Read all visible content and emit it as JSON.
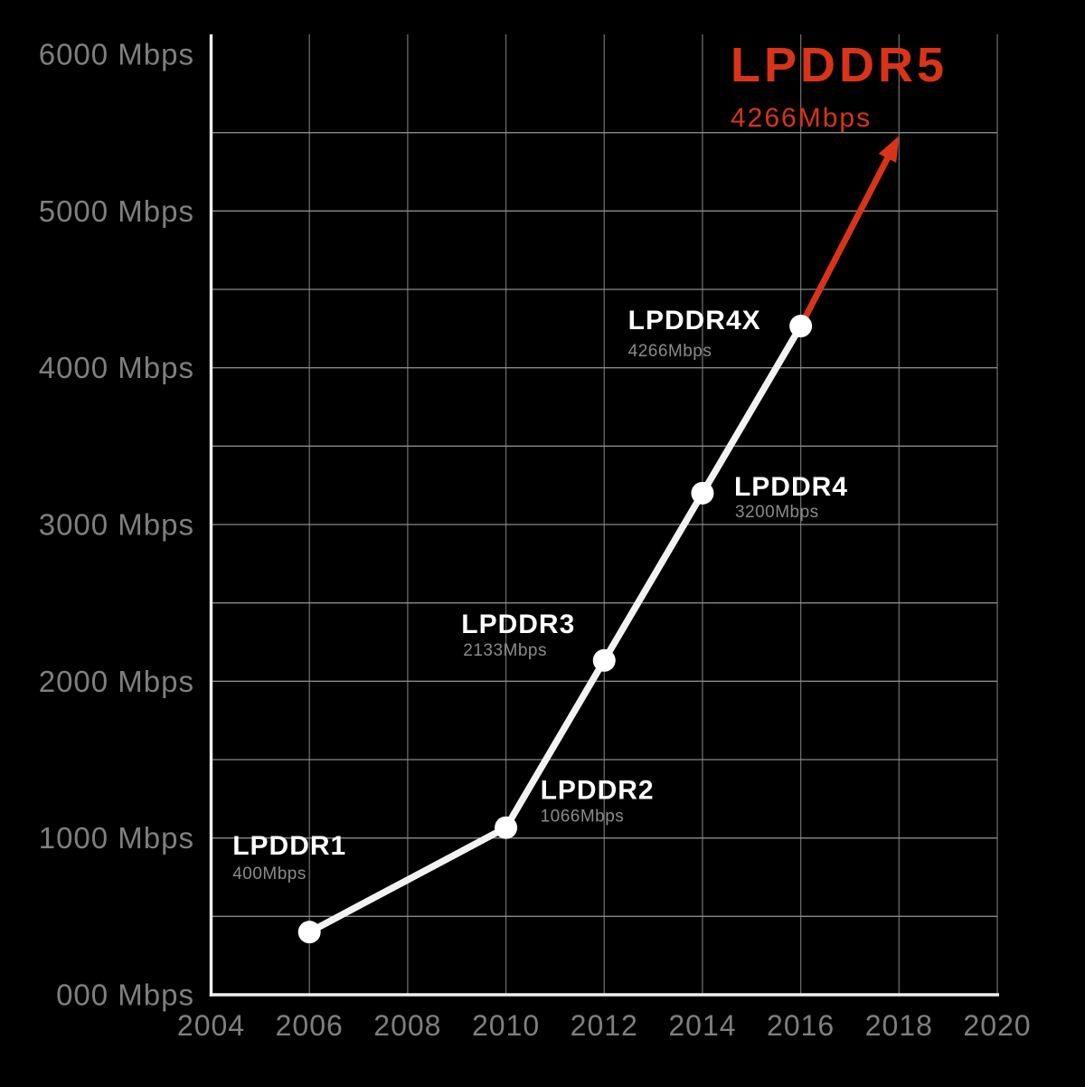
{
  "colors": {
    "background": "#000000",
    "axis": "#f0f0f0",
    "grid_horizontal": "#8a8a8a",
    "grid_vertical": "#6a6a6a",
    "series_line": "#f2f2f2",
    "marker": "#ffffff",
    "tick_label": "#7f7f7f",
    "point_name": "#ffffff",
    "point_value": "#8a8a8a",
    "accent_red": "#d93418"
  },
  "chart_data": {
    "type": "line",
    "x_range": [
      2004,
      2020
    ],
    "y_range": [
      0,
      6000
    ],
    "x_axis": {
      "ticks": [
        {
          "value": 2004,
          "label": "2004"
        },
        {
          "value": 2006,
          "label": "2006"
        },
        {
          "value": 2008,
          "label": "2008"
        },
        {
          "value": 2010,
          "label": "2010"
        },
        {
          "value": 2012,
          "label": "2012"
        },
        {
          "value": 2014,
          "label": "2014"
        },
        {
          "value": 2016,
          "label": "2016"
        },
        {
          "value": 2018,
          "label": "2018"
        },
        {
          "value": 2020,
          "label": "2020"
        }
      ]
    },
    "y_axis": {
      "unit": "Mbps",
      "ticks": [
        {
          "value": 0,
          "label": "000 Mbps"
        },
        {
          "value": 1000,
          "label": "1000 Mbps"
        },
        {
          "value": 2000,
          "label": "2000 Mbps"
        },
        {
          "value": 3000,
          "label": "3000 Mbps"
        },
        {
          "value": 4000,
          "label": "4000 Mbps"
        },
        {
          "value": 5000,
          "label": "5000 Mbps"
        },
        {
          "value": 6000,
          "label": "6000 Mbps"
        }
      ]
    },
    "grid": {
      "x_step_years": 2,
      "y_step_mbps": 500,
      "y_first_line": 500,
      "y_last_line": 5500
    },
    "points": [
      {
        "name": "LPDDR1",
        "year": 2006,
        "mbps": 400,
        "value_label": "400Mbps",
        "label_offset": {
          "name_dx": -85,
          "name_dy": -95,
          "value_dx": -85,
          "value_dy": -64
        }
      },
      {
        "name": "LPDDR2",
        "year": 2010,
        "mbps": 1066,
        "value_label": "1066Mbps",
        "label_offset": {
          "name_dx": 38,
          "name_dy": -41,
          "value_dx": 38,
          "value_dy": -12
        }
      },
      {
        "name": "LPDDR3",
        "year": 2012,
        "mbps": 2133,
        "value_label": "2133Mbps",
        "label_offset": {
          "name_dx": -158,
          "name_dy": -40,
          "value_dx": -156,
          "value_dy": -11
        }
      },
      {
        "name": "LPDDR4",
        "year": 2014,
        "mbps": 3200,
        "value_label": "3200Mbps",
        "label_offset": {
          "name_dx": 35,
          "name_dy": -7,
          "value_dx": 36,
          "value_dy": 21
        }
      },
      {
        "name": "LPDDR4X",
        "year": 2016,
        "mbps": 4266,
        "value_label": "4266Mbps",
        "label_offset": {
          "name_dx": -191,
          "name_dy": -6,
          "value_dx": -191,
          "value_dy": 28
        }
      }
    ],
    "highlight": {
      "name": "LPDDR5",
      "value_label": "4266Mbps",
      "arrow_from": {
        "year": 2016,
        "mbps": 4266
      },
      "arrow_to": {
        "year": 2018,
        "mbps": 5480
      }
    }
  }
}
